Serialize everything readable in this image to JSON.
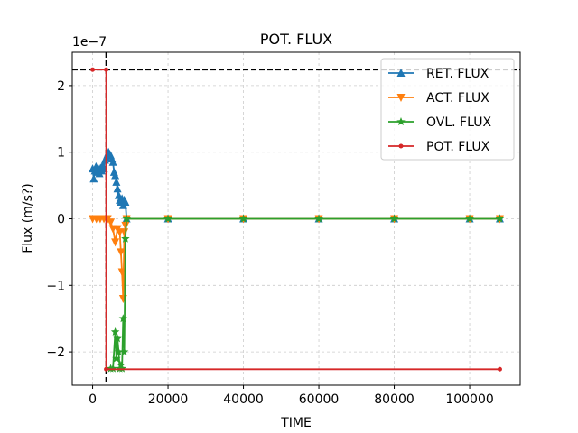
{
  "chart_data": {
    "type": "line",
    "title": "POT. FLUX",
    "xlabel": "TIME",
    "ylabel": "Flux (m/s?)",
    "y_offset_label": "1e−7",
    "xlim": [
      -5400,
      113400
    ],
    "ylim": [
      -2.5e-07,
      2.5e-07
    ],
    "x_ticks": [
      0,
      20000,
      40000,
      60000,
      80000,
      100000
    ],
    "x_tick_labels": [
      "0",
      "20000",
      "40000",
      "60000",
      "80000",
      "100000"
    ],
    "y_ticks": [
      2e-07,
      1e-07,
      0,
      -1e-07,
      -2e-07
    ],
    "y_tick_labels": [
      "2",
      "1",
      "0",
      "−1",
      "−2"
    ],
    "grid": true,
    "legend_position": "top-right",
    "reference_lines": {
      "vertical_x": 3600,
      "horizontal_y": 2.24e-07
    },
    "series": [
      {
        "name": "RET. FLUX",
        "color": "#1f77b4",
        "marker": "triangle-up",
        "x": [
          0,
          300,
          600,
          900,
          1200,
          1500,
          1800,
          2100,
          2400,
          2700,
          3000,
          3300,
          3600,
          3900,
          4200,
          4500,
          4800,
          5100,
          5400,
          5700,
          6000,
          6300,
          6600,
          6900,
          7200,
          7500,
          7800,
          8100,
          8400,
          8700,
          9000,
          20000,
          40000,
          60000,
          80000,
          100000,
          108000
        ],
        "y": [
          7.5e-08,
          6e-08,
          7.2e-08,
          7.8e-08,
          7e-08,
          7.5e-08,
          6.8e-08,
          7.6e-08,
          7.2e-08,
          8e-08,
          7.5e-08,
          8.8e-08,
          9.2e-08,
          9.6e-08,
          1e-07,
          9.7e-08,
          9.5e-08,
          9e-08,
          8.5e-08,
          7e-08,
          6.5e-08,
          5.5e-08,
          4.5e-08,
          3.5e-08,
          2.8e-08,
          2.5e-08,
          3e-08,
          2e-08,
          2.8e-08,
          2.5e-08,
          0,
          0,
          0,
          0,
          0,
          0,
          0
        ]
      },
      {
        "name": "ACT. FLUX",
        "color": "#ff7f0e",
        "marker": "triangle-down",
        "x": [
          0,
          1000,
          2000,
          3000,
          4000,
          4800,
          5400,
          6000,
          6600,
          7200,
          7500,
          7800,
          8100,
          8400,
          8700,
          9000,
          20000,
          40000,
          60000,
          80000,
          100000,
          108000
        ],
        "y": [
          0,
          0,
          0,
          0,
          0,
          -5e-09,
          -1.5e-08,
          -3.5e-08,
          -1.5e-08,
          -2e-08,
          -5e-08,
          -8e-08,
          -1.2e-07,
          -2e-08,
          -1e-08,
          0,
          0,
          0,
          0,
          0,
          0,
          0
        ]
      },
      {
        "name": "OVL. FLUX",
        "color": "#2ca02c",
        "marker": "star",
        "x": [
          4800,
          5400,
          6000,
          6300,
          6600,
          6900,
          7200,
          7500,
          7800,
          8100,
          8400,
          8700,
          9000,
          20000,
          40000,
          60000,
          80000,
          100000,
          108000
        ],
        "y": [
          -2.25e-07,
          -2.25e-07,
          -1.7e-07,
          -2.1e-07,
          -1.8e-07,
          -2e-07,
          -2.25e-07,
          -2.2e-07,
          -2.25e-07,
          -1.5e-07,
          -2e-07,
          -3e-08,
          0,
          0,
          0,
          0,
          0,
          0,
          0
        ]
      },
      {
        "name": "POT. FLUX",
        "color": "#d62728",
        "marker": "point",
        "x": [
          0,
          3600,
          3600,
          108000
        ],
        "y": [
          2.24e-07,
          2.24e-07,
          -2.26e-07,
          -2.26e-07
        ]
      }
    ]
  }
}
